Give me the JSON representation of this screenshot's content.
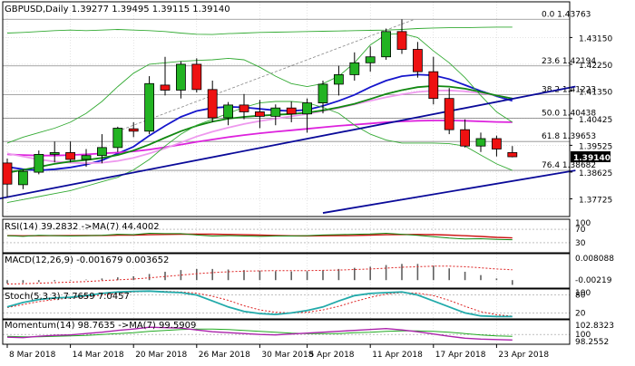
{
  "colors": {
    "bull": "#22b322",
    "bear": "#ee1111",
    "ma_blue": "#1515cc",
    "ma_magenta": "#dd22dd",
    "ma_pink": "#ee99ee",
    "ma_green": "#118811",
    "bb": "#33aa33",
    "trend": "#0a0a99",
    "fib": "#8a8a8a",
    "grid": "#c8c8c8",
    "text": "#000000",
    "rsi_line": "#118811",
    "rsi_ma": "#cc1111",
    "macd_bar": "#606060",
    "macd_signal": "#dd2222",
    "stoch_k": "#22aaaa",
    "stoch_d": "#dd2222",
    "mom_line": "#aa22aa",
    "mom_ma": "#22aa22",
    "last_price_bg": "#000000"
  },
  "chart_data": {
    "type": "candlestick",
    "title": "GBPUSD,Daily  1.39277 1.39495 1.39115 1.39140",
    "symbol": "GBPUSD",
    "timeframe": "Daily",
    "last_ohlc": [
      1.39277,
      1.39495,
      1.39115,
      1.3914
    ],
    "last_price_label": "1.39140",
    "ylim": [
      1.3713,
      1.4435
    ],
    "price_ticks": [
      1.4315,
      1.4225,
      1.4135,
      1.40425,
      1.39525,
      1.38625,
      1.37725
    ],
    "price_tick_labels": [
      "1.43150",
      "1.42250",
      "1.41350",
      "1.40425",
      "1.39525",
      "1.38625",
      "1.37725"
    ],
    "date_labels": [
      {
        "label": "8 Mar 2018",
        "bar": 0
      },
      {
        "label": "14 Mar 2018",
        "bar": 4
      },
      {
        "label": "20 Mar 2018",
        "bar": 8
      },
      {
        "label": "26 Mar 2018",
        "bar": 12
      },
      {
        "label": "30 Mar 2018",
        "bar": 16
      },
      {
        "label": "5 Apr 2018",
        "bar": 19
      },
      {
        "label": "11 Apr 2018",
        "bar": 23
      },
      {
        "label": "17 Apr 2018",
        "bar": 27
      },
      {
        "label": "23 Apr 2018",
        "bar": 31
      }
    ],
    "candles": [
      {
        "o": 1.3893,
        "h": 1.3908,
        "l": 1.3778,
        "c": 1.3822
      },
      {
        "o": 1.382,
        "h": 1.387,
        "l": 1.3805,
        "c": 1.3865
      },
      {
        "o": 1.3862,
        "h": 1.3935,
        "l": 1.3855,
        "c": 1.3922
      },
      {
        "o": 1.3922,
        "h": 1.3965,
        "l": 1.3895,
        "c": 1.3928
      },
      {
        "o": 1.3928,
        "h": 1.3965,
        "l": 1.3895,
        "c": 1.3905
      },
      {
        "o": 1.3905,
        "h": 1.394,
        "l": 1.388,
        "c": 1.3918
      },
      {
        "o": 1.3918,
        "h": 1.399,
        "l": 1.3892,
        "c": 1.3945
      },
      {
        "o": 1.3945,
        "h": 1.4015,
        "l": 1.393,
        "c": 1.401
      },
      {
        "o": 1.4008,
        "h": 1.403,
        "l": 1.398,
        "c": 1.4
      },
      {
        "o": 1.4,
        "h": 1.4185,
        "l": 1.399,
        "c": 1.416
      },
      {
        "o": 1.4155,
        "h": 1.425,
        "l": 1.412,
        "c": 1.4138
      },
      {
        "o": 1.4138,
        "h": 1.4235,
        "l": 1.411,
        "c": 1.4225
      },
      {
        "o": 1.4225,
        "h": 1.4245,
        "l": 1.413,
        "c": 1.414
      },
      {
        "o": 1.414,
        "h": 1.417,
        "l": 1.403,
        "c": 1.4045
      },
      {
        "o": 1.4045,
        "h": 1.4098,
        "l": 1.402,
        "c": 1.4088
      },
      {
        "o": 1.4088,
        "h": 1.4125,
        "l": 1.404,
        "c": 1.4065
      },
      {
        "o": 1.4065,
        "h": 1.4105,
        "l": 1.401,
        "c": 1.405
      },
      {
        "o": 1.405,
        "h": 1.409,
        "l": 1.402,
        "c": 1.4078
      },
      {
        "o": 1.4078,
        "h": 1.41,
        "l": 1.403,
        "c": 1.4058
      },
      {
        "o": 1.4058,
        "h": 1.411,
        "l": 1.3995,
        "c": 1.4095
      },
      {
        "o": 1.4095,
        "h": 1.417,
        "l": 1.406,
        "c": 1.4158
      },
      {
        "o": 1.4158,
        "h": 1.422,
        "l": 1.412,
        "c": 1.419
      },
      {
        "o": 1.419,
        "h": 1.4265,
        "l": 1.417,
        "c": 1.423
      },
      {
        "o": 1.423,
        "h": 1.4285,
        "l": 1.42,
        "c": 1.425
      },
      {
        "o": 1.425,
        "h": 1.4345,
        "l": 1.424,
        "c": 1.4335
      },
      {
        "o": 1.4335,
        "h": 1.4376,
        "l": 1.426,
        "c": 1.4275
      },
      {
        "o": 1.4275,
        "h": 1.43,
        "l": 1.418,
        "c": 1.42
      },
      {
        "o": 1.42,
        "h": 1.425,
        "l": 1.409,
        "c": 1.411
      },
      {
        "o": 1.411,
        "h": 1.4145,
        "l": 1.399,
        "c": 1.4005
      },
      {
        "o": 1.4005,
        "h": 1.404,
        "l": 1.3945,
        "c": 1.395
      },
      {
        "o": 1.395,
        "h": 1.3995,
        "l": 1.393,
        "c": 1.3975
      },
      {
        "o": 1.3975,
        "h": 1.3985,
        "l": 1.3915,
        "c": 1.394
      },
      {
        "o": 1.3928,
        "h": 1.395,
        "l": 1.3912,
        "c": 1.3914
      }
    ],
    "fib_levels": [
      {
        "label": "0.0",
        "value": "1.43763",
        "price": 1.43763
      },
      {
        "label": "23.6",
        "value": "1.42194",
        "price": 1.42194
      },
      {
        "label": "38.2",
        "value": "1.41223",
        "price": 1.41223
      },
      {
        "label": "50.0",
        "value": "1.40438",
        "price": 1.40438
      },
      {
        "label": "61.8",
        "value": "1.39653",
        "price": 1.39653
      },
      {
        "label": "76.4",
        "value": "1.38682",
        "price": 1.38682
      }
    ],
    "moving_averages": [
      {
        "key": "ma_blue",
        "values": [
          1.388,
          1.3872,
          1.3868,
          1.3872,
          1.3878,
          1.3888,
          1.3902,
          1.3925,
          1.3948,
          1.3985,
          1.4018,
          1.4048,
          1.4068,
          1.4078,
          1.4082,
          1.408,
          1.4075,
          1.407,
          1.4068,
          1.4072,
          1.4085,
          1.4102,
          1.4122,
          1.4148,
          1.417,
          1.4185,
          1.419,
          1.4188,
          1.4175,
          1.4155,
          1.4135,
          1.4118,
          1.4102
        ]
      },
      {
        "key": "ma_magenta",
        "values": [
          1.3922,
          1.392,
          1.3918,
          1.3918,
          1.392,
          1.3922,
          1.3925,
          1.3928,
          1.3932,
          1.3938,
          1.3946,
          1.3955,
          1.3964,
          1.3972,
          1.398,
          1.3987,
          1.3993,
          1.3998,
          1.4003,
          1.4008,
          1.4013,
          1.4018,
          1.4022,
          1.4026,
          1.403,
          1.4033,
          1.4035,
          1.4036,
          1.4036,
          1.4035,
          1.4033,
          1.4031,
          1.403
        ]
      },
      {
        "key": "ma_pink",
        "values": [
          1.3925,
          1.3915,
          1.3905,
          1.3898,
          1.3894,
          1.3892,
          1.3894,
          1.39,
          1.391,
          1.3925,
          1.3942,
          1.3962,
          1.3982,
          1.3998,
          1.4012,
          1.4024,
          1.4034,
          1.4042,
          1.405,
          1.4058,
          1.4068,
          1.4078,
          1.409,
          1.4102,
          1.4114,
          1.4124,
          1.4132,
          1.4136,
          1.4137,
          1.4134,
          1.4128,
          1.412,
          1.411
        ]
      },
      {
        "key": "ma_green",
        "values": [
          1.386,
          1.387,
          1.388,
          1.389,
          1.3898,
          1.3903,
          1.391,
          1.392,
          1.3935,
          1.3955,
          1.3978,
          1.4,
          1.4018,
          1.4032,
          1.4042,
          1.4048,
          1.4052,
          1.4055,
          1.4058,
          1.4062,
          1.407,
          1.408,
          1.4092,
          1.4108,
          1.4125,
          1.4138,
          1.4148,
          1.4152,
          1.415,
          1.4143,
          1.4132,
          1.412,
          1.411
        ]
      },
      {
        "key": "bb",
        "values": [
          1.396,
          1.398,
          1.3995,
          1.401,
          1.403,
          1.406,
          1.41,
          1.415,
          1.4195,
          1.4225,
          1.423,
          1.4235,
          1.4238,
          1.424,
          1.4245,
          1.424,
          1.4215,
          1.4185,
          1.416,
          1.415,
          1.416,
          1.4185,
          1.423,
          1.429,
          1.4325,
          1.4328,
          1.4315,
          1.427,
          1.423,
          1.418,
          1.412,
          1.4065,
          1.403
        ]
      },
      {
        "key": "bb",
        "values": [
          1.376,
          1.377,
          1.378,
          1.379,
          1.38,
          1.3815,
          1.383,
          1.3845,
          1.387,
          1.3905,
          1.395,
          1.399,
          1.402,
          1.404,
          1.406,
          1.408,
          1.4095,
          1.41,
          1.41,
          1.4095,
          1.408,
          1.406,
          1.402,
          1.399,
          1.397,
          1.396,
          1.396,
          1.396,
          1.3958,
          1.395,
          1.392,
          1.389,
          1.3868
        ]
      },
      {
        "key": "bb",
        "values": [
          1.433,
          1.4332,
          1.4335,
          1.4338,
          1.434,
          1.4338,
          1.434,
          1.4342,
          1.434,
          1.4338,
          1.4335,
          1.433,
          1.4326,
          1.4325,
          1.4328,
          1.433,
          1.4332,
          1.4333,
          1.4334,
          1.4335,
          1.4336,
          1.4337,
          1.4338,
          1.4339,
          1.434,
          1.4342,
          1.4345,
          1.4347,
          1.4348,
          1.4348,
          1.4349,
          1.435,
          1.435
        ]
      }
    ],
    "trend_lines": [
      {
        "from": {
          "bar": -1,
          "price": 1.3768
        },
        "to": {
          "bar": 36,
          "price": 1.415
        },
        "style": "solid"
      },
      {
        "from": {
          "bar": 20,
          "price": 1.3725
        },
        "to": {
          "bar": 36,
          "price": 1.3868
        },
        "style": "solid"
      },
      {
        "from": {
          "bar": 7,
          "price": 1.4
        },
        "to": {
          "bar": 25.8,
          "price": 1.4376
        },
        "style": "dashed"
      }
    ]
  },
  "indicators": {
    "rsi": {
      "label": "RSI(14) 39.2832  ->MA(7) 44.4002",
      "range": [
        0,
        100
      ],
      "levels": [
        70,
        30
      ],
      "level_labels": [
        "70",
        "30"
      ],
      "extra_label": "100",
      "values": [
        51,
        49,
        52,
        51,
        50,
        51,
        52,
        55,
        54,
        58,
        57,
        57,
        53,
        50,
        51,
        50,
        49,
        50,
        50,
        51,
        53,
        54,
        55,
        56,
        58,
        55,
        52,
        48,
        44,
        41,
        42,
        40,
        39
      ],
      "ma_values": [
        51,
        50.6,
        50.9,
        51,
        51.1,
        51.4,
        51.6,
        52.4,
        52.7,
        53.9,
        54.6,
        55.3,
        55.5,
        55.5,
        54.6,
        53.9,
        52.6,
        51.6,
        50.6,
        50.4,
        50.7,
        51.2,
        51.7,
        52.7,
        53.9,
        54.4,
        54.7,
        54.1,
        52.6,
        50.7,
        48.6,
        46,
        44.4
      ]
    },
    "macd": {
      "label": "MACD(12,26,9) -0.001679 0.003652",
      "top_label": "0.008088",
      "bottom_label": "-0.00219",
      "range": [
        -0.0022,
        0.0085
      ],
      "values": [
        -0.0012,
        -0.001,
        -0.0007,
        -0.0004,
        -0.0002,
        0.0002,
        0.0006,
        0.001,
        0.0014,
        0.0022,
        0.003,
        0.0036,
        0.004,
        0.004,
        0.0038,
        0.0036,
        0.0034,
        0.0032,
        0.0031,
        0.0032,
        0.0036,
        0.004,
        0.0044,
        0.0048,
        0.0054,
        0.0058,
        0.0058,
        0.0052,
        0.0042,
        0.003,
        0.0018,
        0.0006,
        -0.0017
      ],
      "signal": [
        -0.0014,
        -0.0013,
        -0.0011,
        -0.0009,
        -0.0007,
        -0.0005,
        -0.0002,
        0.0001,
        0.0004,
        0.0008,
        0.0013,
        0.0018,
        0.0023,
        0.0027,
        0.003,
        0.0032,
        0.0033,
        0.0034,
        0.0034,
        0.0034,
        0.0035,
        0.0036,
        0.0038,
        0.004,
        0.0043,
        0.0046,
        0.0048,
        0.005,
        0.005,
        0.0048,
        0.0044,
        0.004,
        0.0037
      ]
    },
    "stoch": {
      "label": "Stoch(5,3,3) 7.7659 7.0457",
      "range": [
        0,
        100
      ],
      "levels": [
        80,
        20
      ],
      "level_labels": [
        "80",
        "20"
      ],
      "extra_label": "100",
      "k": [
        40,
        55,
        65,
        70,
        72,
        78,
        85,
        90,
        92,
        93,
        90,
        88,
        80,
        60,
        40,
        25,
        18,
        15,
        20,
        28,
        40,
        60,
        78,
        85,
        88,
        90,
        80,
        60,
        40,
        20,
        10,
        8,
        8
      ],
      "d": [
        38,
        48,
        58,
        65,
        70,
        74,
        80,
        86,
        90,
        92,
        92,
        90,
        86,
        76,
        62,
        44,
        30,
        22,
        20,
        22,
        30,
        42,
        58,
        72,
        83,
        88,
        86,
        78,
        62,
        42,
        24,
        14,
        9
      ]
    },
    "momentum": {
      "label": "Momentum(14) 98.7635  ->MA(7) 99.5909",
      "top_label": "102.8323",
      "mid_label": "100",
      "bottom_label": "98.2552",
      "range": [
        98.2552,
        102.8323
      ],
      "values": [
        99.4,
        99.3,
        99.6,
        99.8,
        99.9,
        100.2,
        100.5,
        100.9,
        101.2,
        101.6,
        101.5,
        101.4,
        101.0,
        100.6,
        100.4,
        100.2,
        100.0,
        99.9,
        100.1,
        100.3,
        100.5,
        100.7,
        100.9,
        101.1,
        101.3,
        101.0,
        100.6,
        100.1,
        99.6,
        99.2,
        99.0,
        98.9,
        98.8
      ],
      "ma_values": [
        99.6,
        99.5,
        99.5,
        99.6,
        99.7,
        99.8,
        100.0,
        100.2,
        100.4,
        100.7,
        100.9,
        101.1,
        101.2,
        101.2,
        101.1,
        100.9,
        100.7,
        100.5,
        100.3,
        100.2,
        100.2,
        100.2,
        100.4,
        100.5,
        100.7,
        100.8,
        100.8,
        100.7,
        100.5,
        100.2,
        99.9,
        99.7,
        99.6
      ]
    }
  }
}
